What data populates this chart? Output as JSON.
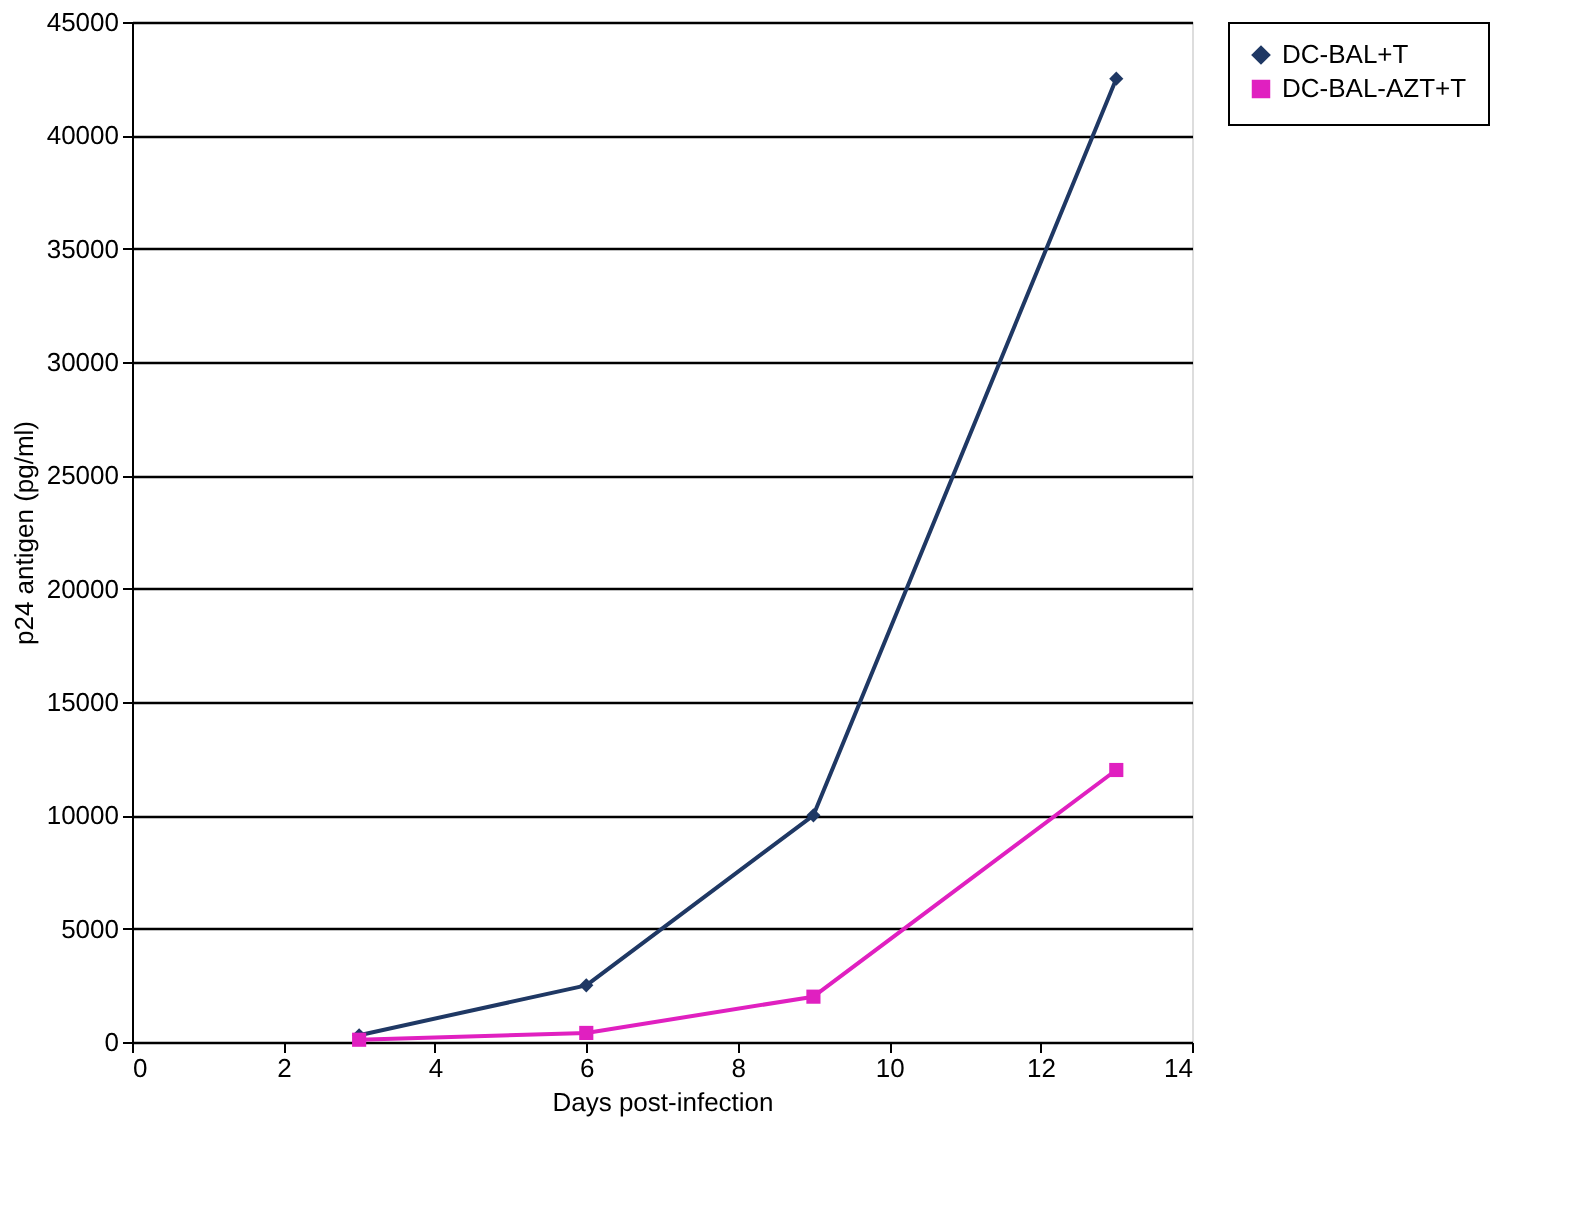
{
  "chart_data": {
    "type": "line",
    "xlabel": "Days post-infection",
    "ylabel": "p24 antigen (pg/ml)",
    "x": [
      3,
      6,
      9,
      13
    ],
    "series": [
      {
        "name": "DC-BAL+T",
        "color": "#1f3864",
        "marker": "diamond",
        "values": [
          300,
          2500,
          10000,
          42500
        ]
      },
      {
        "name": "DC-BAL-AZT+T",
        "color": "#e020c0",
        "marker": "square",
        "values": [
          100,
          400,
          2000,
          12000
        ]
      }
    ],
    "xlim": [
      0,
      14
    ],
    "xticks": [
      0,
      2,
      4,
      6,
      8,
      10,
      12,
      14
    ],
    "ylim": [
      0,
      45000
    ],
    "yticks": [
      0,
      5000,
      10000,
      15000,
      20000,
      25000,
      30000,
      35000,
      40000,
      45000
    ],
    "grid": "y",
    "legend": "right",
    "line_style": "solid"
  }
}
